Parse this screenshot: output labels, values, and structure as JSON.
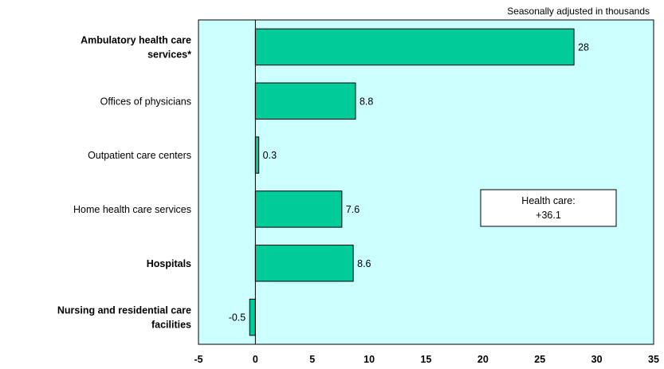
{
  "chart_data": {
    "type": "bar",
    "orientation": "horizontal",
    "unit_note": "Seasonally adjusted in thousands",
    "categories": [
      {
        "label_lines": [
          "Ambulatory health care",
          "services*"
        ],
        "bold": true
      },
      {
        "label_lines": [
          "Offices of physicians"
        ],
        "bold": false
      },
      {
        "label_lines": [
          "Outpatient care centers"
        ],
        "bold": false
      },
      {
        "label_lines": [
          "Home health care services"
        ],
        "bold": false
      },
      {
        "label_lines": [
          "Hospitals"
        ],
        "bold": true
      },
      {
        "label_lines": [
          "Nursing and residential care",
          "facilities"
        ],
        "bold": true
      }
    ],
    "values": [
      28,
      8.8,
      0.3,
      7.6,
      8.6,
      -0.5
    ],
    "value_labels": [
      "28",
      "8.8",
      "0.3",
      "7.6",
      "8.6",
      "-0.5"
    ],
    "xlim": [
      -5,
      35
    ],
    "xticks": [
      -5,
      0,
      5,
      10,
      15,
      20,
      25,
      30,
      35
    ],
    "grid": false,
    "annotation": {
      "lines": [
        "Health care:",
        "+36.1"
      ]
    },
    "colors": {
      "bar": "#00cc99",
      "plot_bg": "#ccffff",
      "border": "#000000"
    }
  }
}
